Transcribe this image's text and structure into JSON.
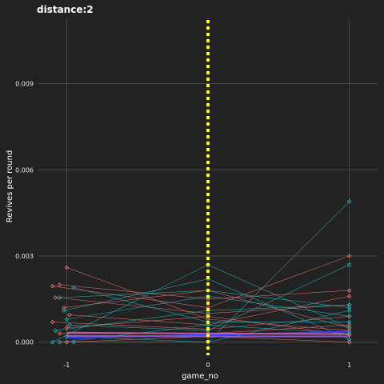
{
  "chart_data": {
    "type": "scatter",
    "title": "distance:2",
    "xlabel": "game_no",
    "ylabel": "Revives per round",
    "xlim": [
      -1.2,
      1.2
    ],
    "ylim": [
      -0.00012,
      0.0113
    ],
    "x_ticks": [
      -1,
      0,
      1
    ],
    "x_tick_labels": [
      "-1",
      "0",
      "1"
    ],
    "y_ticks": [
      0.0,
      0.003,
      0.006,
      0.009
    ],
    "y_tick_labels": [
      "0.000",
      "0.003",
      "0.006",
      "0.009"
    ],
    "grid": true,
    "legend": "none",
    "vline": {
      "x": 0,
      "color": "#ffff00",
      "style": "dotted"
    },
    "colors": {
      "red": "#f07070",
      "teal": "#20b8c0",
      "blue": "#3a3aff",
      "pink": "#c85a9e",
      "purple": "#8a5acd",
      "yellow": "#ffff00"
    },
    "series": [
      {
        "color": "red",
        "points": [
          [
            -1.1,
            0.00195
          ],
          [
            0,
            0.0012
          ],
          [
            1,
            0.003
          ]
        ]
      },
      {
        "color": "red",
        "points": [
          [
            -1.0,
            0.0026
          ],
          [
            0,
            0.0008
          ],
          [
            1,
            0.0004
          ]
        ]
      },
      {
        "color": "red",
        "points": [
          [
            -1.05,
            0.002
          ],
          [
            0,
            0.0015
          ],
          [
            1,
            0.0018
          ]
        ]
      },
      {
        "color": "red",
        "points": [
          [
            -1.08,
            0.00155
          ],
          [
            0,
            0.001
          ],
          [
            1,
            0.0013
          ]
        ]
      },
      {
        "color": "red",
        "points": [
          [
            -1.02,
            0.0012
          ],
          [
            0,
            0.0018
          ],
          [
            1,
            0.0005
          ]
        ]
      },
      {
        "color": "red",
        "points": [
          [
            -0.98,
            0.00095
          ],
          [
            0,
            0.0006
          ],
          [
            1,
            0.0016
          ]
        ]
      },
      {
        "color": "red",
        "points": [
          [
            -1.1,
            0.0007
          ],
          [
            0,
            0.00045
          ],
          [
            1,
            0.0009
          ]
        ]
      },
      {
        "color": "red",
        "points": [
          [
            -1.0,
            0.0005
          ],
          [
            0,
            0.0009
          ],
          [
            1,
            0.00025
          ]
        ]
      },
      {
        "color": "red",
        "points": [
          [
            -1.05,
            0.0003
          ],
          [
            0,
            0.0003
          ],
          [
            1,
            0.0006
          ]
        ]
      },
      {
        "color": "red",
        "points": [
          [
            -1.0,
            0.0
          ],
          [
            0,
            0.0002
          ],
          [
            1,
            0.0
          ]
        ]
      },
      {
        "color": "teal",
        "points": [
          [
            -1.1,
            0.0
          ],
          [
            0,
            0.0027
          ],
          [
            1,
            0.0005
          ]
        ]
      },
      {
        "color": "teal",
        "points": [
          [
            -1.0,
            0.0002
          ],
          [
            0,
            0.0
          ],
          [
            1,
            0.0049
          ]
        ]
      },
      {
        "color": "teal",
        "points": [
          [
            -0.95,
            0.0019
          ],
          [
            0,
            0.0007
          ],
          [
            1,
            0.0007
          ]
        ]
      },
      {
        "color": "teal",
        "points": [
          [
            -1.05,
            0.00155
          ],
          [
            0,
            0.0018
          ],
          [
            1,
            0.0012
          ]
        ]
      },
      {
        "color": "teal",
        "points": [
          [
            -1.02,
            0.0011
          ],
          [
            0,
            0.0022
          ],
          [
            1,
            0.0001
          ]
        ]
      },
      {
        "color": "teal",
        "points": [
          [
            -0.98,
            0.0006
          ],
          [
            0,
            0.0004
          ],
          [
            1,
            0.0027
          ]
        ]
      },
      {
        "color": "teal",
        "points": [
          [
            -1.08,
            0.0004
          ],
          [
            0,
            0.0011
          ],
          [
            1,
            0.0013
          ]
        ]
      },
      {
        "color": "teal",
        "points": [
          [
            -1.0,
            0.0008
          ],
          [
            0,
            0.0016
          ],
          [
            1,
            0.0009
          ]
        ]
      },
      {
        "color": "teal",
        "points": [
          [
            -1.05,
            0.0
          ],
          [
            0,
            0.0006
          ],
          [
            1,
            0.0003
          ]
        ]
      },
      {
        "color": "teal",
        "points": [
          [
            -0.95,
            0.0
          ],
          [
            0,
            0.0
          ],
          [
            1,
            0.0011
          ]
        ]
      }
    ],
    "summary_lines": [
      {
        "color": "blue",
        "points": [
          [
            -1,
            0.00015
          ],
          [
            0,
            0.00025
          ],
          [
            1,
            0.00037
          ]
        ]
      },
      {
        "color": "pink",
        "points": [
          [
            -1,
            0.00033
          ],
          [
            0,
            0.0003
          ],
          [
            1,
            0.00028
          ]
        ]
      },
      {
        "color": "purple",
        "points": [
          [
            -1,
            0.00022
          ],
          [
            0,
            0.0002
          ],
          [
            1,
            0.0002
          ]
        ]
      }
    ]
  }
}
